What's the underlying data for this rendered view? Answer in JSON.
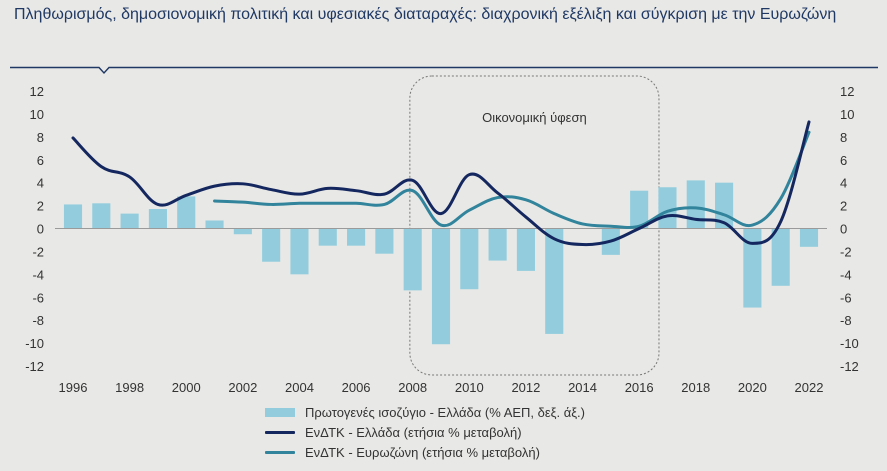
{
  "header": {
    "title": "Πληθωρισμός, δημοσιονομική πολιτική και υφεσιακές διαταραχές: διαχρονική εξέλιξη και σύγκριση με την Ευρωζώνη"
  },
  "colors": {
    "background": "#e8e8e6",
    "title": "#1f3864",
    "bars": "#93cddd",
    "greece_line": "#15275f",
    "eurozone_line": "#31849b",
    "annotation_box": "#777777"
  },
  "chart_data": {
    "type": "bar+line",
    "title": "Πληθωρισμός, δημοσιονομική πολιτική και υφεσιακές διαταραχές: διαχρονική εξέλιξη και σύγκριση με την Ευρωζώνη",
    "xlabel": "",
    "ylabel": "",
    "x": [
      1996,
      1997,
      1998,
      1999,
      2000,
      2001,
      2002,
      2003,
      2004,
      2005,
      2006,
      2007,
      2008,
      2009,
      2010,
      2011,
      2012,
      2013,
      2014,
      2015,
      2016,
      2017,
      2018,
      2019,
      2020,
      2021,
      2022
    ],
    "x_tick_labels": [
      "1996",
      "1998",
      "2000",
      "2002",
      "2004",
      "2006",
      "2008",
      "2010",
      "2012",
      "2014",
      "2016",
      "2018",
      "2020",
      "2022"
    ],
    "ylim": [
      -12,
      12
    ],
    "y_ticks": [
      "12",
      "10",
      "8",
      "6",
      "4",
      "2",
      "0",
      "-2",
      "-4",
      "-6",
      "-8",
      "-10",
      "-12"
    ],
    "grid": false,
    "series": [
      {
        "name": "Πρωτογενές ισοζύγιο - Ελλάδα (% ΑΕΠ, δεξ. άξ.)",
        "kind": "bar",
        "axis": "right",
        "values": [
          2.1,
          2.2,
          1.3,
          1.7,
          2.8,
          0.7,
          -0.5,
          -2.9,
          -4.0,
          -1.5,
          -1.5,
          -2.2,
          -5.4,
          -10.1,
          -5.3,
          -2.8,
          -3.7,
          -9.2,
          null,
          -2.3,
          3.3,
          3.6,
          4.2,
          4.0,
          -6.9,
          -5.0,
          -1.6
        ]
      },
      {
        "name": "ΕνΔΤΚ - Ελλάδα (ετήσια % μεταβολή)",
        "kind": "line",
        "axis": "left",
        "values": [
          7.9,
          5.4,
          4.5,
          2.1,
          2.9,
          3.7,
          3.9,
          3.4,
          3.0,
          3.5,
          3.3,
          3.0,
          4.2,
          1.3,
          4.7,
          3.1,
          1.0,
          -0.9,
          -1.4,
          -1.1,
          0.0,
          1.1,
          0.8,
          0.5,
          -1.3,
          0.6,
          9.3
        ]
      },
      {
        "name": "ΕνΔΤΚ - Ευρωζώνη (ετήσια % μεταβολή)",
        "kind": "line",
        "axis": "left",
        "values": [
          null,
          null,
          null,
          null,
          null,
          2.4,
          2.3,
          2.1,
          2.2,
          2.2,
          2.2,
          2.1,
          3.3,
          0.3,
          1.6,
          2.7,
          2.5,
          1.3,
          0.4,
          0.2,
          0.2,
          1.5,
          1.8,
          1.2,
          0.3,
          2.6,
          8.4
        ]
      }
    ],
    "annotations": [
      {
        "label": "Οικονομική ύφεση",
        "x_range": [
          2007.9,
          2016.7
        ]
      }
    ]
  }
}
